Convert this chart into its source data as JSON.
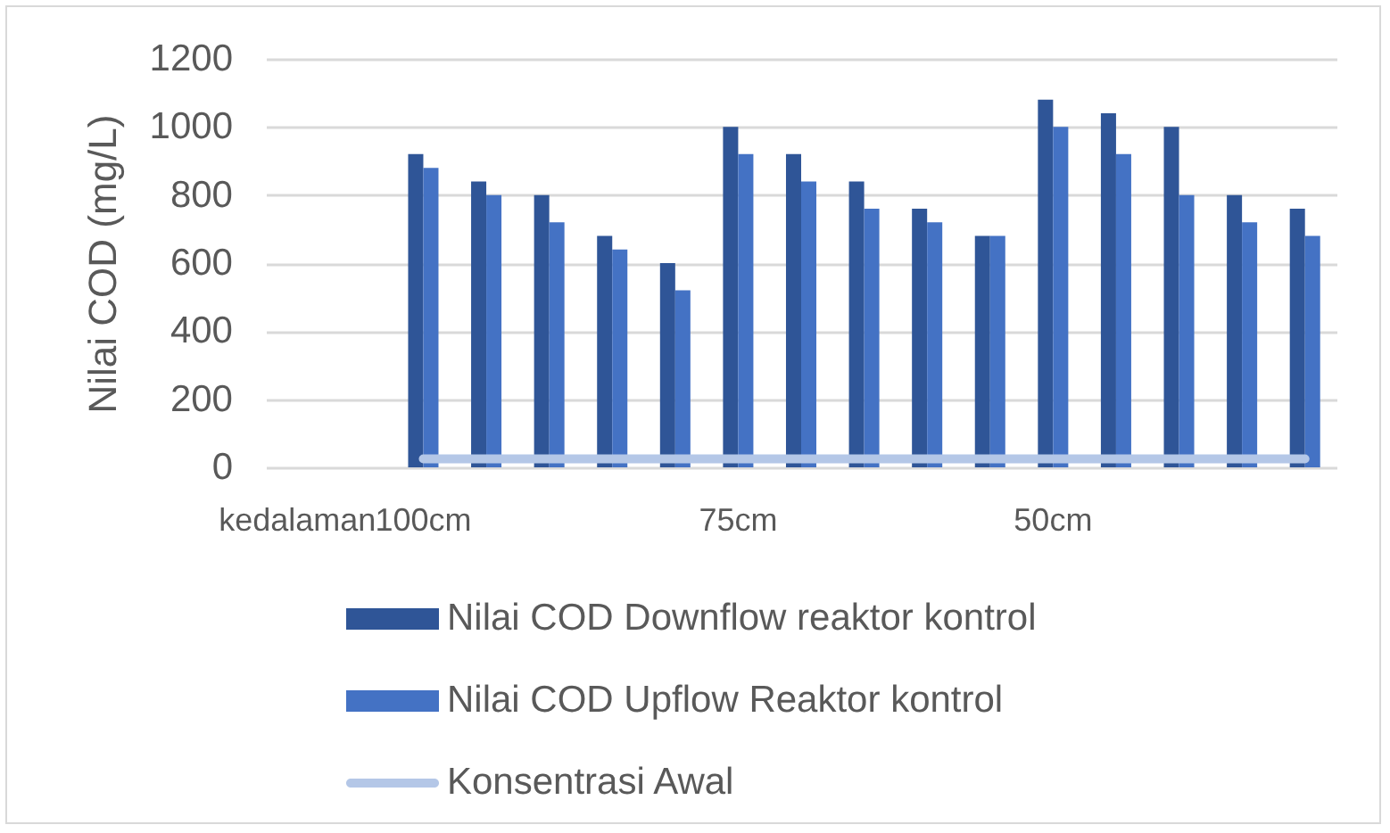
{
  "chart_data": {
    "type": "bar",
    "ylabel": "Nilai COD (mg/L)",
    "categories": [
      "kedalaman",
      null,
      "100cm",
      null,
      null,
      null,
      null,
      "75cm",
      null,
      null,
      null,
      null,
      "50cm",
      null,
      null,
      null,
      null
    ],
    "series": [
      {
        "name": "Nilai COD Downflow reaktor kontrol",
        "color": "#2f5597",
        "values": [
          null,
          null,
          920,
          840,
          800,
          680,
          600,
          1000,
          920,
          840,
          760,
          680,
          1080,
          1040,
          1000,
          800,
          760
        ]
      },
      {
        "name": "Nilai COD  Upflow Reaktor kontrol",
        "color": "#4472c4",
        "values": [
          null,
          null,
          880,
          800,
          720,
          640,
          520,
          920,
          840,
          760,
          720,
          680,
          1000,
          920,
          800,
          720,
          680
        ]
      },
      {
        "name": "Konsentrasi Awal",
        "type": "line",
        "color": "#b4c7e7",
        "values": [
          null,
          null,
          25,
          25,
          25,
          25,
          25,
          25,
          25,
          25,
          25,
          25,
          25,
          25,
          25,
          25,
          25
        ]
      }
    ],
    "ylim": [
      0,
      1200
    ],
    "yticks": [
      0,
      200,
      400,
      600,
      800,
      1000,
      1200
    ],
    "grid": "y",
    "legend": "bottom"
  }
}
